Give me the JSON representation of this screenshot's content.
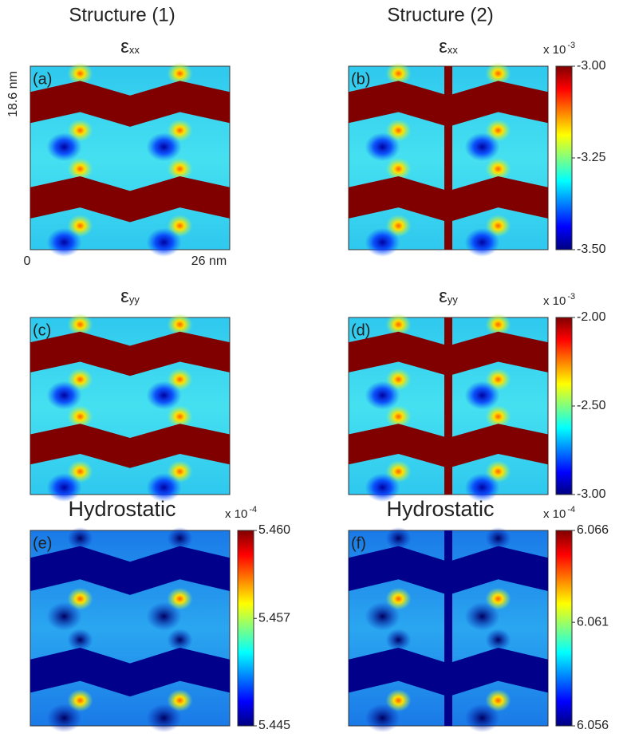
{
  "columns": [
    "Structure (1)",
    "Structure (2)"
  ],
  "panels": [
    {
      "letter": "(a)",
      "symbol": "ε",
      "subscript": "xx"
    },
    {
      "letter": "(b)",
      "symbol": "ε",
      "subscript": "xx"
    },
    {
      "letter": "(c)",
      "symbol": "ε",
      "subscript": "yy"
    },
    {
      "letter": "(d)",
      "symbol": "ε",
      "subscript": "yy"
    },
    {
      "letter": "(e)",
      "title": "Hydrostatic"
    },
    {
      "letter": "(f)",
      "title": "Hydrostatic"
    }
  ],
  "axes": {
    "height": "18.6 nm",
    "x_start": "0",
    "x_end": "26 nm"
  },
  "colorbars": [
    {
      "multiplier": "x 10",
      "exponent": "-3",
      "ticks": [
        "-3.00",
        "-3.25",
        "-3.50"
      ]
    },
    {
      "multiplier": "x 10",
      "exponent": "-3",
      "ticks": [
        "-2.00",
        "-2.50",
        "-3.00"
      ]
    },
    {
      "multiplier": "x 10",
      "exponent": "-4",
      "ticks": [
        "5.460",
        "5.457",
        "5.445"
      ]
    },
    {
      "multiplier": "x 10",
      "exponent": "-4",
      "ticks": [
        "6.066",
        "6.061",
        "6.056"
      ]
    }
  ]
}
